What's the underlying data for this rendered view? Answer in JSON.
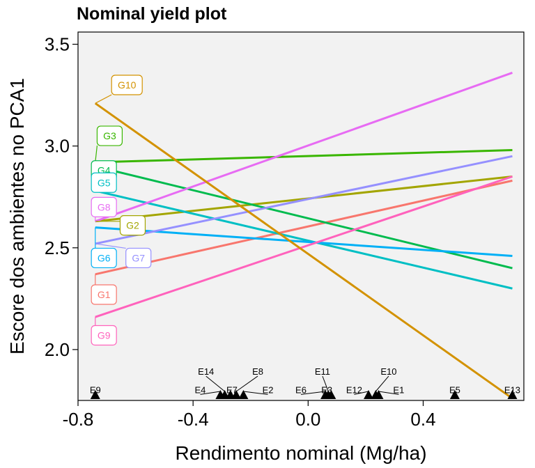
{
  "chart_data": {
    "type": "line",
    "title": "Nominal yield plot",
    "xlabel": "Rendimento nominal (Mg/ha)",
    "ylabel": "Escore dos ambientes no PCA1",
    "xlim": [
      -0.8,
      0.75
    ],
    "ylim": [
      1.75,
      3.56
    ],
    "xticks": [
      -0.8,
      -0.4,
      0.0,
      0.4
    ],
    "xtick_labels": [
      "-0.8",
      "-0.4",
      "0.0",
      "0.4"
    ],
    "yticks": [
      2.0,
      2.5,
      3.0,
      3.5
    ],
    "ytick_labels": [
      "2.0",
      "2.5",
      "3.0",
      "3.5"
    ],
    "grid": false,
    "series": [
      {
        "name": "G1",
        "color": "#F8766D",
        "x": [
          -0.74,
          0.71
        ],
        "y": [
          2.37,
          2.83
        ],
        "label_pos": [
          -0.71,
          2.27
        ]
      },
      {
        "name": "G2",
        "color": "#A3A500",
        "x": [
          -0.74,
          0.71
        ],
        "y": [
          2.63,
          2.85
        ],
        "label_pos": [
          -0.61,
          2.61
        ]
      },
      {
        "name": "G3",
        "color": "#39B600",
        "x": [
          -0.74,
          0.71
        ],
        "y": [
          2.92,
          2.98
        ],
        "label_pos": [
          -0.69,
          3.05
        ]
      },
      {
        "name": "G4",
        "color": "#00BB4E",
        "x": [
          -0.74,
          0.71
        ],
        "y": [
          2.9,
          2.4
        ],
        "label_pos": [
          -0.71,
          2.88
        ]
      },
      {
        "name": "G5",
        "color": "#00BFC4",
        "x": [
          -0.74,
          0.71
        ],
        "y": [
          2.78,
          2.3
        ],
        "label_pos": [
          -0.71,
          2.82
        ]
      },
      {
        "name": "G6",
        "color": "#00B0F6",
        "x": [
          -0.74,
          0.71
        ],
        "y": [
          2.6,
          2.46
        ],
        "label_pos": [
          -0.71,
          2.45
        ]
      },
      {
        "name": "G7",
        "color": "#9590FF",
        "x": [
          -0.74,
          0.71
        ],
        "y": [
          2.52,
          2.95
        ],
        "label_pos": [
          -0.59,
          2.45
        ]
      },
      {
        "name": "G8",
        "color": "#E76BF3",
        "x": [
          -0.74,
          0.71
        ],
        "y": [
          2.63,
          3.36
        ],
        "label_pos": [
          -0.71,
          2.7
        ]
      },
      {
        "name": "G9",
        "color": "#FF62BC",
        "x": [
          -0.74,
          0.71
        ],
        "y": [
          2.16,
          2.85
        ],
        "label_pos": [
          -0.71,
          2.07
        ]
      },
      {
        "name": "G10",
        "color": "#D39200",
        "x": [
          -0.74,
          0.71
        ],
        "y": [
          3.21,
          1.76
        ],
        "label_pos": [
          -0.63,
          3.3
        ]
      }
    ],
    "environments": {
      "marker": "triangle",
      "color": "#000000",
      "points": [
        {
          "name": "E9",
          "x": -0.74,
          "label_pos": [
            -0.74,
            1.8
          ]
        },
        {
          "name": "E4",
          "x": -0.305,
          "label_pos": [
            -0.375,
            1.8
          ]
        },
        {
          "name": "E14",
          "x": -0.29,
          "label_pos": [
            -0.355,
            1.89
          ]
        },
        {
          "name": "E7",
          "x": -0.27,
          "label_pos": [
            -0.265,
            1.8
          ]
        },
        {
          "name": "E8",
          "x": -0.25,
          "label_pos": [
            -0.175,
            1.89
          ]
        },
        {
          "name": "E2",
          "x": -0.225,
          "label_pos": [
            -0.14,
            1.8
          ]
        },
        {
          "name": "E6",
          "x": 0.06,
          "label_pos": [
            -0.025,
            1.8
          ]
        },
        {
          "name": "E11",
          "x": 0.07,
          "label_pos": [
            0.05,
            1.89
          ]
        },
        {
          "name": "E3",
          "x": 0.08,
          "label_pos": [
            0.065,
            1.8
          ]
        },
        {
          "name": "E12",
          "x": 0.21,
          "label_pos": [
            0.16,
            1.8
          ]
        },
        {
          "name": "E10",
          "x": 0.235,
          "label_pos": [
            0.28,
            1.89
          ]
        },
        {
          "name": "E1",
          "x": 0.245,
          "label_pos": [
            0.315,
            1.8
          ]
        },
        {
          "name": "E5",
          "x": 0.51,
          "label_pos": [
            0.51,
            1.8
          ]
        },
        {
          "name": "E13",
          "x": 0.71,
          "label_pos": [
            0.71,
            1.8
          ]
        }
      ]
    }
  }
}
